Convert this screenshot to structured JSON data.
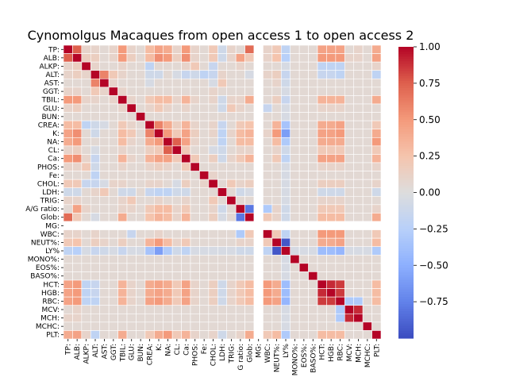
{
  "chart_data": {
    "type": "heatmap",
    "title": "Cynomolgus Macaques from open access 1 to open access 2",
    "variables": [
      "TP:",
      "ALB:",
      "ALKP:",
      "ALT:",
      "AST:",
      "GGT:",
      "TBIL:",
      "GLU:",
      "BUN:",
      "CREA:",
      "K:",
      "NA:",
      "CL:",
      "Ca:",
      "PHOS:",
      "Fe:",
      "CHOL:",
      "LDH:",
      "TRIG:",
      "A/G ratio:",
      "Glob:",
      "MG:",
      "WBC:",
      "NEUT%:",
      "LY%",
      "MONO%:",
      "EOS%:",
      "BASO%:",
      "HCT:",
      "HGB:",
      "RBC:",
      "MCV:",
      "MCH:",
      "MCHC:",
      "PLT:"
    ],
    "x_tick_labels": [
      "TP:",
      "ALB:",
      "ALKP:",
      "ALT:",
      "AST:",
      "GGT:",
      "TBIL:",
      "GLU:",
      "BUN:",
      "CREA:",
      "K:",
      "NA:",
      "CL:",
      "Ca:",
      "PHOS:",
      "Fe:",
      "CHOL:",
      "LDH:",
      "TRIG:",
      "G ratio:",
      "Glob:",
      "MG:",
      "WBC:",
      "NEUT%:",
      "LY%",
      "MONO%:",
      "EOS%:",
      "BASO%:",
      "HCT:",
      "HGB:",
      "RBC:",
      "MCV:",
      "MCH:",
      "MCHC:",
      "PLT:"
    ],
    "matrix": [
      [
        1,
        0.75,
        0.1,
        0.1,
        0.05,
        0.1,
        0.5,
        0.1,
        0.05,
        0.3,
        0.45,
        0.4,
        0.1,
        0.5,
        0.1,
        0.05,
        0.2,
        -0.1,
        0.1,
        0.05,
        0.7,
        null,
        0.1,
        0.2,
        -0.2,
        0.05,
        0.05,
        0.05,
        0.45,
        0.45,
        0.45,
        0.05,
        0.1,
        0.05,
        0.4
      ],
      [
        0.75,
        1,
        0.15,
        0.15,
        0.05,
        0.1,
        0.5,
        0.15,
        0.05,
        0.3,
        0.55,
        0.5,
        0.15,
        0.55,
        0.1,
        0.05,
        0.2,
        -0.1,
        0.1,
        0.45,
        0.2,
        null,
        0.1,
        0.25,
        -0.25,
        0.05,
        0.05,
        0.05,
        0.5,
        0.5,
        0.5,
        0.1,
        0.1,
        0.05,
        0.45
      ],
      [
        0.1,
        0.15,
        1,
        0.1,
        0.05,
        0.05,
        0.1,
        0.05,
        0.05,
        -0.2,
        0.05,
        0.05,
        0.05,
        0.1,
        0.2,
        0.05,
        -0.15,
        0.05,
        0.05,
        0.1,
        0.05,
        null,
        0.05,
        0.05,
        -0.05,
        0.05,
        0.05,
        0.05,
        -0.2,
        -0.2,
        -0.2,
        0.05,
        0.05,
        0.05,
        0.1
      ],
      [
        0.1,
        0.15,
        0.1,
        1,
        0.6,
        0.2,
        0.1,
        0.05,
        0.05,
        -0.1,
        -0.1,
        0.05,
        -0.05,
        -0.15,
        -0.1,
        -0.2,
        -0.15,
        0.1,
        0.05,
        0.05,
        -0.05,
        null,
        0.1,
        0.15,
        -0.15,
        0.05,
        0.05,
        0.05,
        -0.15,
        -0.15,
        -0.2,
        0.05,
        0.05,
        0.05,
        -0.2
      ],
      [
        0.05,
        0.05,
        0.05,
        0.6,
        1,
        0.1,
        0.05,
        0.05,
        0.05,
        -0.05,
        0.05,
        0.05,
        0.05,
        0.05,
        0.05,
        0.05,
        -0.05,
        0.2,
        0.05,
        0.05,
        0.05,
        null,
        0.05,
        0.1,
        -0.1,
        0.05,
        0.05,
        0.05,
        0.05,
        0.05,
        0.05,
        0.05,
        0.05,
        0.05,
        0.05
      ],
      [
        0.1,
        0.1,
        0.05,
        0.2,
        0.1,
        1,
        0.1,
        0.05,
        0.05,
        0.05,
        0.05,
        0.05,
        0.05,
        0.05,
        0.05,
        0.05,
        0.1,
        0.05,
        0.05,
        0.05,
        0.05,
        null,
        0.05,
        0.05,
        -0.05,
        0.05,
        0.05,
        0.05,
        0.05,
        0.05,
        0.05,
        0.05,
        0.05,
        0.05,
        0.05
      ],
      [
        0.5,
        0.5,
        0.1,
        0.1,
        0.05,
        0.1,
        1,
        0.1,
        0.05,
        0.2,
        0.3,
        0.3,
        0.1,
        0.35,
        0.1,
        0.05,
        0.1,
        -0.1,
        0.1,
        0.1,
        0.4,
        null,
        0.05,
        0.15,
        -0.15,
        0.05,
        0.05,
        0.05,
        0.35,
        0.35,
        0.35,
        0.05,
        0.05,
        0.05,
        0.4
      ],
      [
        0.1,
        0.15,
        0.05,
        0.05,
        0.05,
        0.05,
        0.1,
        1,
        0.05,
        0.1,
        0.2,
        0.1,
        0.05,
        0.1,
        0.05,
        0.05,
        0.05,
        -0.1,
        0.2,
        0.1,
        0.05,
        null,
        -0.15,
        0.05,
        -0.05,
        0.05,
        0.05,
        0.05,
        0.1,
        0.1,
        0.1,
        0.05,
        0.05,
        0.05,
        0.05
      ],
      [
        0.05,
        0.05,
        0.05,
        0.05,
        0.05,
        0.05,
        0.05,
        0.05,
        1,
        0.05,
        0.05,
        0.05,
        0.05,
        0.05,
        0.05,
        0.05,
        0.05,
        0.05,
        0.05,
        0.05,
        0.05,
        null,
        0.05,
        0.05,
        -0.05,
        0.05,
        0.05,
        0.05,
        0.05,
        0.05,
        0.05,
        0.05,
        0.05,
        0.05,
        0.05
      ],
      [
        0.3,
        0.3,
        -0.2,
        -0.1,
        -0.05,
        0.05,
        0.2,
        0.1,
        0.05,
        1,
        0.6,
        0.4,
        0.15,
        0.35,
        0.1,
        0.05,
        0.1,
        -0.15,
        0.05,
        0.2,
        0.25,
        null,
        0.05,
        0.35,
        -0.35,
        0.05,
        0.05,
        0.05,
        0.4,
        0.4,
        0.45,
        0.05,
        0.05,
        0.05,
        0.2
      ],
      [
        0.45,
        0.55,
        0.05,
        -0.1,
        0.05,
        0.05,
        0.3,
        0.2,
        0.05,
        0.6,
        1,
        0.5,
        0.2,
        0.45,
        0.15,
        0.05,
        0.1,
        -0.2,
        0.1,
        0.3,
        0.35,
        null,
        0.1,
        0.5,
        -0.6,
        0.05,
        0.05,
        0.05,
        0.45,
        0.45,
        0.5,
        0.05,
        0.05,
        0.05,
        0.4
      ],
      [
        0.4,
        0.5,
        0.05,
        0.05,
        0.05,
        0.05,
        0.3,
        0.1,
        0.05,
        0.4,
        0.5,
        1,
        0.75,
        0.45,
        0.1,
        0.05,
        0.05,
        -0.2,
        0.05,
        0.3,
        0.3,
        null,
        0.05,
        0.3,
        -0.3,
        0.05,
        0.05,
        0.05,
        0.4,
        0.4,
        0.4,
        0.05,
        0.05,
        0.05,
        0.5
      ],
      [
        0.1,
        0.15,
        0.05,
        -0.05,
        0.05,
        0.05,
        0.1,
        0.05,
        0.05,
        0.15,
        0.2,
        0.75,
        1,
        0.2,
        0.05,
        0.05,
        -0.05,
        -0.1,
        0.05,
        0.1,
        0.1,
        null,
        0.05,
        0.1,
        -0.1,
        0.05,
        0.05,
        0.05,
        0.2,
        0.2,
        0.2,
        0.05,
        0.05,
        0.05,
        0.2
      ],
      [
        0.5,
        0.55,
        0.1,
        -0.15,
        0.05,
        0.05,
        0.35,
        0.1,
        0.05,
        0.35,
        0.45,
        0.45,
        0.2,
        1,
        0.2,
        0.05,
        0.15,
        -0.1,
        0.1,
        0.2,
        0.35,
        null,
        0.05,
        0.2,
        -0.2,
        0.05,
        0.05,
        0.05,
        0.45,
        0.45,
        0.45,
        0.05,
        0.05,
        0.05,
        0.35
      ],
      [
        0.1,
        0.1,
        0.2,
        -0.1,
        0.05,
        0.05,
        0.1,
        0.05,
        0.05,
        0.1,
        0.15,
        0.1,
        0.05,
        0.2,
        1,
        0.05,
        0.05,
        0.05,
        0.05,
        0.05,
        0.05,
        null,
        0.05,
        0.05,
        -0.05,
        0.05,
        0.05,
        0.05,
        0.1,
        0.1,
        0.1,
        0.05,
        0.05,
        0.05,
        0.1
      ],
      [
        0.05,
        0.05,
        0.05,
        -0.2,
        0.05,
        0.05,
        0.05,
        0.05,
        0.05,
        0.05,
        0.05,
        0.05,
        0.05,
        0.05,
        0.05,
        1,
        0.1,
        0.05,
        0.05,
        0.05,
        0.05,
        null,
        0.05,
        0.05,
        -0.05,
        0.05,
        0.05,
        0.05,
        0.05,
        0.05,
        0.05,
        0.05,
        0.05,
        0.05,
        0.05
      ],
      [
        0.2,
        0.2,
        -0.15,
        -0.15,
        -0.05,
        0.1,
        0.1,
        0.05,
        0.05,
        0.1,
        0.1,
        0.05,
        -0.05,
        0.15,
        0.05,
        0.1,
        1,
        0.05,
        0.2,
        0.1,
        0.15,
        null,
        0.05,
        0.05,
        -0.05,
        0.05,
        0.05,
        0.05,
        0.15,
        0.15,
        0.15,
        0.05,
        0.05,
        0.05,
        0.1
      ],
      [
        -0.1,
        -0.1,
        0.05,
        0.1,
        0.2,
        0.05,
        -0.1,
        -0.1,
        0.05,
        -0.15,
        -0.2,
        -0.2,
        -0.1,
        -0.1,
        0.05,
        0.05,
        0.05,
        1,
        0.05,
        -0.1,
        -0.05,
        null,
        0.05,
        0.05,
        -0.05,
        0.05,
        0.05,
        0.05,
        -0.1,
        -0.1,
        -0.1,
        0.05,
        0.05,
        0.05,
        -0.1
      ],
      [
        0.1,
        0.1,
        0.05,
        0.05,
        0.05,
        0.05,
        0.1,
        0.2,
        0.05,
        0.05,
        0.1,
        0.05,
        0.05,
        0.1,
        0.05,
        0.05,
        0.2,
        0.05,
        1,
        0.05,
        0.05,
        null,
        0.05,
        0.05,
        -0.05,
        0.05,
        0.05,
        0.05,
        0.1,
        0.1,
        0.1,
        0.05,
        0.05,
        0.05,
        0.05
      ],
      [
        0.05,
        0.45,
        0.1,
        0.05,
        0.05,
        0.05,
        0.1,
        0.1,
        0.05,
        0.2,
        0.3,
        0.3,
        0.1,
        0.2,
        0.05,
        0.05,
        0.1,
        -0.1,
        0.05,
        1,
        -0.8,
        null,
        -0.3,
        0.1,
        -0.1,
        0.05,
        0.05,
        0.05,
        0.2,
        0.2,
        0.2,
        0.05,
        0.05,
        0.05,
        0.1
      ],
      [
        0.7,
        0.2,
        0.05,
        -0.05,
        0.05,
        0.05,
        0.4,
        0.05,
        0.05,
        0.25,
        0.35,
        0.3,
        0.1,
        0.35,
        0.05,
        0.05,
        0.15,
        -0.05,
        0.05,
        -0.8,
        1,
        null,
        0.2,
        0.1,
        -0.1,
        0.05,
        0.05,
        0.05,
        0.3,
        0.3,
        0.3,
        0.05,
        0.05,
        0.05,
        0.4
      ],
      [
        null,
        null,
        null,
        null,
        null,
        null,
        null,
        null,
        null,
        null,
        null,
        null,
        null,
        null,
        null,
        null,
        null,
        null,
        null,
        null,
        null,
        null,
        null,
        null,
        null,
        null,
        null,
        null,
        null,
        null,
        null,
        null,
        null,
        null,
        null
      ],
      [
        0.1,
        0.1,
        0.05,
        0.1,
        0.05,
        0.05,
        0.05,
        -0.15,
        0.05,
        0.05,
        0.1,
        0.05,
        0.05,
        0.05,
        0.05,
        0.05,
        0.05,
        0.05,
        0.05,
        -0.3,
        0.2,
        null,
        1,
        0.2,
        -0.2,
        0.05,
        0.05,
        0.05,
        0.5,
        0.5,
        0.5,
        0.05,
        0.05,
        0.05,
        0.2
      ],
      [
        0.2,
        0.25,
        0.05,
        0.15,
        0.1,
        0.05,
        0.15,
        0.05,
        0.05,
        0.35,
        0.5,
        0.3,
        0.1,
        0.2,
        0.05,
        0.05,
        0.05,
        0.05,
        0.05,
        0.1,
        0.1,
        null,
        0.2,
        1,
        -0.95,
        0.05,
        0.05,
        0.05,
        0.4,
        0.4,
        0.45,
        0.05,
        0.05,
        0.05,
        0.3
      ],
      [
        -0.2,
        -0.25,
        -0.05,
        -0.15,
        -0.1,
        -0.05,
        -0.15,
        -0.05,
        -0.05,
        -0.35,
        -0.6,
        -0.3,
        -0.1,
        -0.2,
        -0.05,
        -0.05,
        -0.05,
        -0.05,
        -0.05,
        -0.1,
        -0.1,
        null,
        -0.2,
        -0.95,
        1,
        -0.05,
        -0.05,
        -0.05,
        -0.4,
        -0.4,
        -0.45,
        -0.05,
        -0.05,
        -0.05,
        -0.3
      ],
      [
        0.05,
        0.05,
        0.05,
        0.05,
        0.05,
        0.05,
        0.05,
        0.05,
        0.05,
        0.05,
        0.05,
        0.05,
        0.05,
        0.05,
        0.05,
        0.05,
        0.05,
        0.05,
        0.05,
        0.05,
        0.05,
        null,
        0.05,
        0.05,
        -0.05,
        1,
        0.05,
        0.05,
        0.05,
        0.05,
        0.05,
        0.05,
        0.05,
        0.05,
        0.05
      ],
      [
        0.05,
        0.05,
        0.05,
        0.05,
        0.05,
        0.05,
        0.05,
        0.05,
        0.05,
        0.05,
        0.05,
        0.05,
        0.05,
        0.05,
        0.05,
        0.05,
        0.05,
        0.05,
        0.05,
        0.05,
        0.05,
        null,
        0.05,
        0.05,
        -0.05,
        0.05,
        1,
        0.05,
        0.05,
        0.05,
        0.05,
        0.05,
        0.05,
        0.05,
        0.05
      ],
      [
        0.05,
        0.05,
        0.05,
        0.05,
        0.05,
        0.05,
        0.05,
        0.05,
        0.05,
        0.05,
        0.05,
        0.05,
        0.05,
        0.05,
        0.05,
        0.05,
        0.05,
        0.05,
        0.05,
        0.05,
        0.05,
        null,
        0.05,
        0.05,
        -0.05,
        0.05,
        0.05,
        1,
        0.05,
        0.05,
        0.05,
        0.05,
        0.05,
        0.05,
        0.05
      ],
      [
        0.45,
        0.5,
        -0.2,
        -0.15,
        0.05,
        0.05,
        0.35,
        0.1,
        0.05,
        0.4,
        0.45,
        0.4,
        0.2,
        0.45,
        0.1,
        0.05,
        0.15,
        -0.1,
        0.1,
        0.2,
        0.3,
        null,
        0.5,
        0.4,
        -0.4,
        0.05,
        0.05,
        0.05,
        1,
        0.9,
        0.85,
        0.05,
        0.05,
        0.05,
        0.3
      ],
      [
        0.45,
        0.5,
        -0.2,
        -0.15,
        0.05,
        0.05,
        0.35,
        0.1,
        0.05,
        0.4,
        0.45,
        0.4,
        0.2,
        0.45,
        0.1,
        0.05,
        0.15,
        -0.1,
        0.1,
        0.2,
        0.3,
        null,
        0.5,
        0.4,
        -0.4,
        0.05,
        0.05,
        0.05,
        0.9,
        1,
        0.85,
        0.05,
        0.05,
        0.05,
        0.3
      ],
      [
        0.45,
        0.5,
        -0.2,
        -0.2,
        0.05,
        0.05,
        0.35,
        0.1,
        0.05,
        0.45,
        0.5,
        0.4,
        0.2,
        0.45,
        0.1,
        0.05,
        0.15,
        -0.1,
        0.1,
        0.2,
        0.3,
        null,
        0.5,
        0.45,
        -0.45,
        0.05,
        0.05,
        0.05,
        0.85,
        0.85,
        1,
        -0.3,
        -0.3,
        0.05,
        0.3
      ],
      [
        0.05,
        0.1,
        0.05,
        0.05,
        0.05,
        0.05,
        0.05,
        0.05,
        0.05,
        0.05,
        0.05,
        0.05,
        0.05,
        0.05,
        0.05,
        0.05,
        0.05,
        0.05,
        0.05,
        0.05,
        0.05,
        null,
        0.05,
        0.05,
        -0.05,
        0.05,
        0.05,
        0.05,
        0.05,
        0.05,
        -0.3,
        1,
        0.9,
        0.05,
        0.05
      ],
      [
        0.1,
        0.1,
        0.05,
        0.05,
        0.05,
        0.05,
        0.05,
        0.05,
        0.05,
        0.05,
        0.05,
        0.05,
        0.05,
        0.05,
        0.05,
        0.05,
        0.05,
        0.05,
        0.05,
        0.05,
        0.05,
        null,
        0.05,
        0.05,
        -0.05,
        0.05,
        0.05,
        0.05,
        0.05,
        0.05,
        -0.3,
        0.9,
        1,
        0.05,
        0.05
      ],
      [
        0.05,
        0.05,
        0.05,
        0.05,
        0.05,
        0.05,
        0.05,
        0.05,
        0.05,
        0.05,
        0.05,
        0.05,
        0.05,
        0.05,
        0.05,
        0.05,
        0.05,
        0.05,
        0.05,
        0.05,
        0.05,
        null,
        0.05,
        0.05,
        -0.05,
        0.05,
        0.05,
        0.05,
        0.05,
        0.05,
        0.05,
        0.05,
        0.05,
        1,
        0.05
      ],
      [
        0.4,
        0.45,
        0.1,
        -0.2,
        0.05,
        0.05,
        0.4,
        0.05,
        0.05,
        0.2,
        0.4,
        0.5,
        0.2,
        0.35,
        0.1,
        0.05,
        0.1,
        -0.1,
        0.05,
        0.1,
        0.4,
        null,
        0.2,
        0.3,
        -0.3,
        0.05,
        0.05,
        0.05,
        0.3,
        0.3,
        0.3,
        0.05,
        0.05,
        0.05,
        1
      ]
    ],
    "colorbar": {
      "range": [
        -1,
        1
      ],
      "ticks": [
        1.0,
        0.75,
        0.5,
        0.25,
        0.0,
        -0.25,
        -0.5,
        -0.75
      ],
      "tick_labels": [
        "1.00",
        "0.75",
        "0.50",
        "0.25",
        "0.00",
        "−0.25",
        "−0.50",
        "−0.75"
      ],
      "colormap": "coolwarm"
    },
    "missing_color": "#ffffff",
    "grid": true
  }
}
